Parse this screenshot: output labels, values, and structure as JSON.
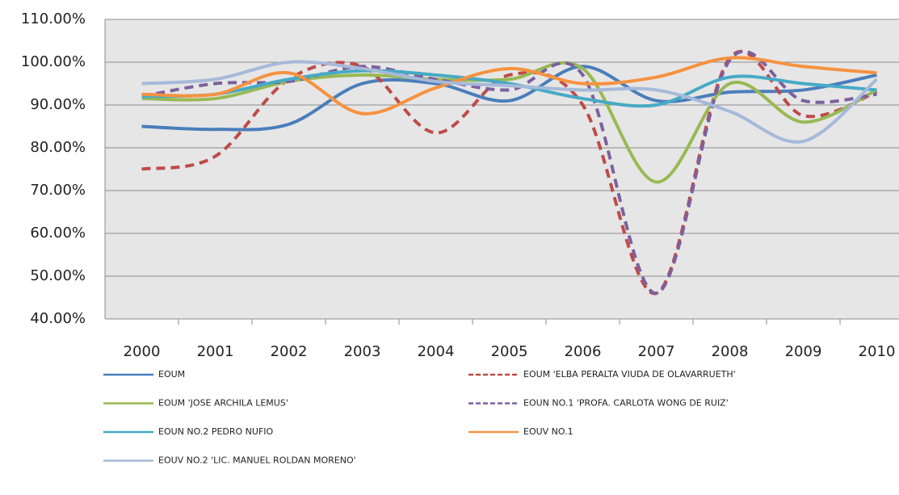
{
  "chart_data": {
    "type": "line",
    "categories": [
      "2000",
      "2001",
      "2002",
      "2003",
      "2004",
      "2005",
      "2006",
      "2007",
      "2008",
      "2009",
      "2010"
    ],
    "ylim": [
      40,
      110
    ],
    "yticks": [
      {
        "value": 40,
        "label": "40.00%"
      },
      {
        "value": 50,
        "label": "50.00%"
      },
      {
        "value": 60,
        "label": "60.00%"
      },
      {
        "value": 70,
        "label": "70.00%"
      },
      {
        "value": 80,
        "label": "80.00%"
      },
      {
        "value": 90,
        "label": "90.00%"
      },
      {
        "value": 100,
        "label": "100.00%"
      },
      {
        "value": 110,
        "label": "110.00%"
      }
    ],
    "grid": true,
    "legend": "bottom",
    "smooth": true,
    "series": [
      {
        "name": "EOUM",
        "color": "#4a7ebb",
        "style": "solid",
        "values": [
          85,
          84.3,
          85.5,
          95,
          95,
          91,
          99,
          91,
          93,
          93.5,
          97
        ]
      },
      {
        "name": "EOUM 'ELBA PERALTA VIUDA DE OLAVARRUETH'",
        "color": "#be4b48",
        "style": "dashed",
        "values": [
          75,
          78,
          96,
          99,
          83.5,
          97,
          90,
          46,
          101,
          87.5,
          93
        ]
      },
      {
        "name": "EOUM 'JOSE ARCHILA LEMUS'",
        "color": "#98b954",
        "style": "solid",
        "values": [
          91.5,
          91.5,
          95.5,
          97,
          96,
          96,
          98.5,
          72,
          95,
          86,
          93.5
        ]
      },
      {
        "name": "EOUN NO.1 'PROFA. CARLOTA WONG DE RUIZ'",
        "color": "#7d60a0",
        "style": "dashed",
        "values": [
          92,
          95,
          95.5,
          99,
          96,
          93.5,
          97,
          46,
          100.5,
          91,
          92.5
        ]
      },
      {
        "name": "EOUN NO.2 PEDRO NUFIO",
        "color": "#46aac5",
        "style": "solid",
        "values": [
          92,
          92.5,
          96,
          98,
          97,
          95,
          91.5,
          90,
          96.5,
          95,
          93.5
        ]
      },
      {
        "name": "EOUV NO.1",
        "color": "#f69240",
        "style": "solid",
        "values": [
          92.5,
          92.5,
          97.5,
          88,
          94,
          98.5,
          95,
          96.5,
          101,
          99,
          97.5
        ]
      },
      {
        "name": "EOUV NO.2 'LIC. MANUEL ROLDAN MORENO'",
        "color": "#a6b9d9",
        "style": "solid",
        "values": [
          95,
          96,
          100,
          98.5,
          95.5,
          94.5,
          93.5,
          93.5,
          88.5,
          81.5,
          96
        ]
      }
    ]
  }
}
